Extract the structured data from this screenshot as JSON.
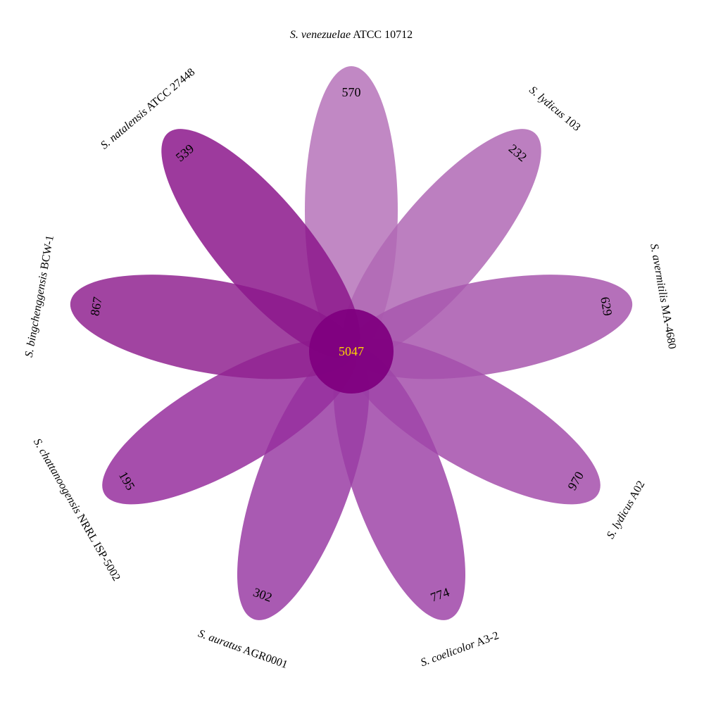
{
  "core": {
    "value": "5047",
    "color": "#800080",
    "text_color": "#FFD700"
  },
  "petals": [
    {
      "species": "S. venezuelae",
      "strain": "ATCC 10712",
      "count": "570",
      "color": "#B673BA"
    },
    {
      "species": "S. lydicus",
      "strain": "103",
      "count": "232",
      "color": "#B068B5"
    },
    {
      "species": "S. avermitilis",
      "strain": "MA-4680",
      "count": "629",
      "color": "#A857AE"
    },
    {
      "species": "S. lydicus",
      "strain": "A02",
      "count": "970",
      "color": "#A44FAB"
    },
    {
      "species": "S. coelicolor",
      "strain": "A3-2",
      "count": "774",
      "color": "#9F45A8"
    },
    {
      "species": "S. auratus",
      "strain": "AGR0001",
      "count": "302",
      "color": "#9A3DA5"
    },
    {
      "species": "S. chattanoogensis",
      "strain": "NRRL ISP-5002",
      "count": "195",
      "color": "#962F9E"
    },
    {
      "species": "S. bingchenggensis",
      "strain": "BCW-1",
      "count": "867",
      "color": "#902391"
    },
    {
      "species": "S. natalensis",
      "strain": "ATCC 27448",
      "count": "539",
      "color": "#8C178C"
    }
  ]
}
